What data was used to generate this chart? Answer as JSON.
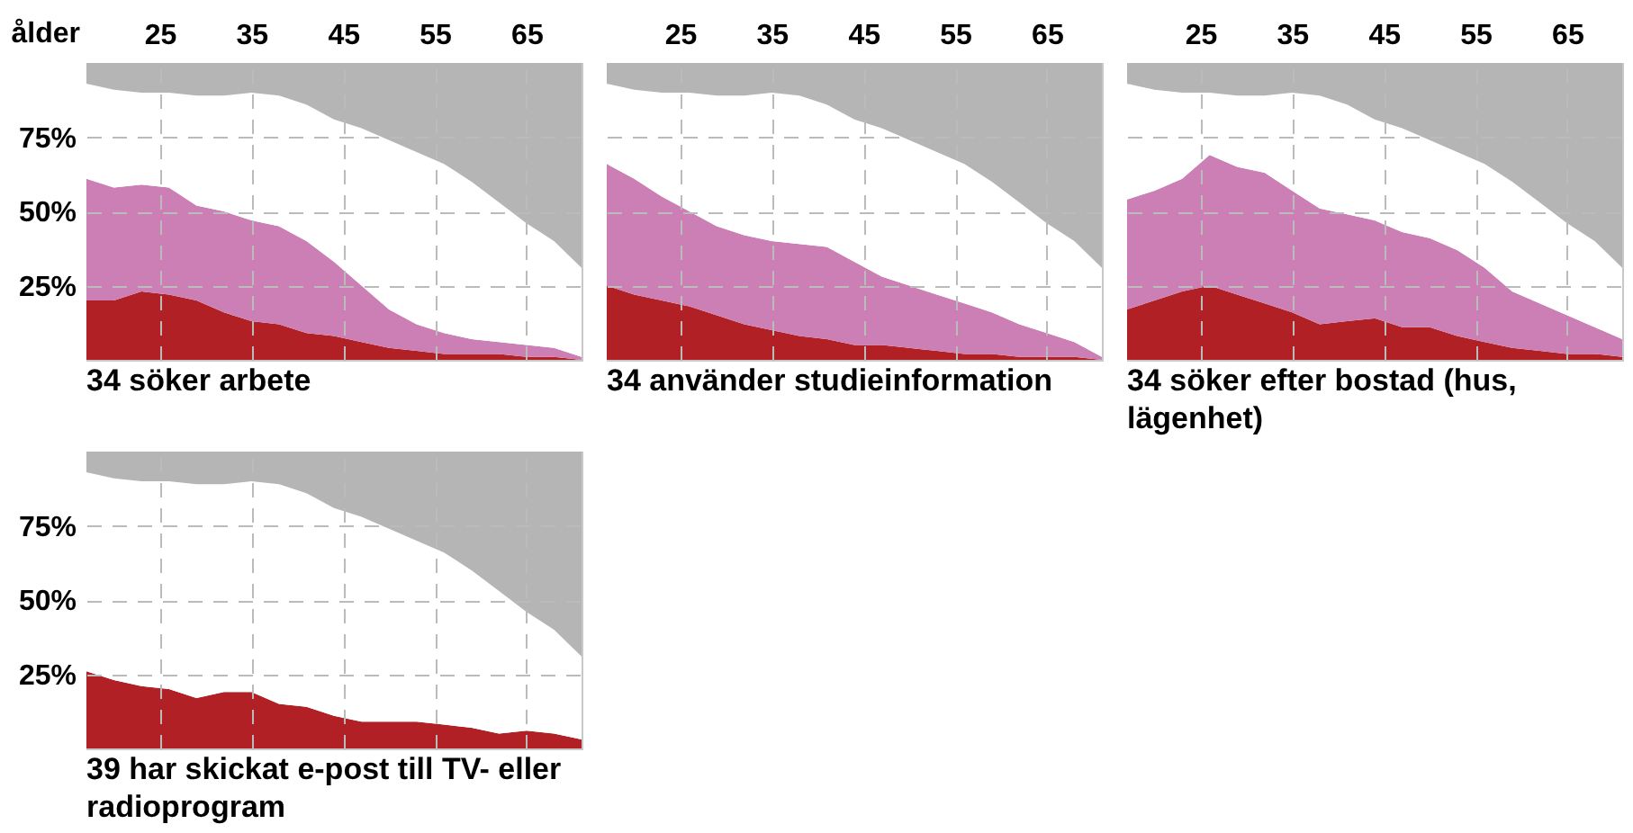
{
  "chart_data": [
    {
      "type": "area",
      "title": "34 söker arbete",
      "xlabel": "ålder",
      "stacked": true,
      "grid": true,
      "xlim": [
        17,
        71
      ],
      "xticks": [
        25,
        35,
        45,
        55,
        65
      ],
      "ylim": [
        0,
        100
      ],
      "yticks": [
        {
          "value": 25,
          "label": "25%"
        },
        {
          "value": 50,
          "label": "50%"
        },
        {
          "value": 75,
          "label": "75%"
        }
      ],
      "x": [
        17,
        20,
        23,
        26,
        29,
        32,
        35,
        38,
        41,
        44,
        47,
        50,
        53,
        56,
        59,
        62,
        65,
        68,
        71
      ],
      "series": [
        {
          "color": "#b02024",
          "values": [
            20,
            20,
            23,
            22,
            20,
            16,
            13,
            12,
            9,
            8,
            6,
            4,
            3,
            2,
            2,
            2,
            1,
            1,
            0
          ]
        },
        {
          "color": "#cc7fb5",
          "values": [
            41,
            38,
            36,
            36,
            32,
            34,
            34,
            33,
            31,
            25,
            19,
            13,
            9,
            7,
            5,
            4,
            4,
            3,
            1
          ]
        },
        {
          "color": "#ffffff",
          "values": [
            32,
            33,
            31,
            32,
            37,
            39,
            43,
            44,
            46,
            48,
            53,
            57,
            58,
            57,
            53,
            47,
            41,
            36,
            30
          ]
        },
        {
          "color": "#b5b5b5",
          "values": [
            7,
            9,
            10,
            10,
            11,
            11,
            10,
            11,
            14,
            19,
            22,
            26,
            30,
            34,
            40,
            47,
            54,
            60,
            69
          ]
        }
      ]
    },
    {
      "type": "area",
      "title": "34 använder studieinformation",
      "stacked": true,
      "grid": true,
      "tick_labels": "x",
      "xlim": [
        17,
        71
      ],
      "xticks": [
        25,
        35,
        45,
        55,
        65
      ],
      "ylim": [
        0,
        100
      ],
      "yticks": [
        25,
        50,
        75
      ],
      "x": [
        17,
        20,
        23,
        26,
        29,
        32,
        35,
        38,
        41,
        44,
        47,
        50,
        53,
        56,
        59,
        62,
        65,
        68,
        71
      ],
      "series": [
        {
          "color": "#b02024",
          "values": [
            25,
            22,
            20,
            18,
            15,
            12,
            10,
            8,
            7,
            5,
            5,
            4,
            3,
            2,
            2,
            1,
            1,
            1,
            0
          ]
        },
        {
          "color": "#cc7fb5",
          "values": [
            41,
            39,
            35,
            32,
            30,
            30,
            30,
            31,
            31,
            28,
            23,
            21,
            19,
            17,
            14,
            11,
            8,
            5,
            1
          ]
        },
        {
          "color": "#ffffff",
          "values": [
            27,
            30,
            35,
            40,
            44,
            47,
            50,
            50,
            48,
            48,
            50,
            49,
            48,
            47,
            44,
            41,
            37,
            34,
            30
          ]
        },
        {
          "color": "#b5b5b5",
          "values": [
            7,
            9,
            10,
            10,
            11,
            11,
            10,
            11,
            14,
            19,
            22,
            26,
            30,
            34,
            40,
            47,
            54,
            60,
            69
          ]
        }
      ]
    },
    {
      "type": "area",
      "title": "34 söker efter bostad (hus, lägenhet)",
      "stacked": true,
      "grid": true,
      "tick_labels": "x",
      "xlim": [
        17,
        71
      ],
      "xticks": [
        25,
        35,
        45,
        55,
        65
      ],
      "ylim": [
        0,
        100
      ],
      "yticks": [
        25,
        50,
        75
      ],
      "x": [
        17,
        20,
        23,
        26,
        29,
        32,
        35,
        38,
        41,
        44,
        47,
        50,
        53,
        56,
        59,
        62,
        65,
        68,
        71
      ],
      "series": [
        {
          "color": "#b02024",
          "values": [
            17,
            20,
            23,
            25,
            22,
            19,
            16,
            12,
            13,
            14,
            11,
            11,
            8,
            6,
            4,
            3,
            2,
            2,
            1
          ]
        },
        {
          "color": "#cc7fb5",
          "values": [
            37,
            37,
            38,
            44,
            43,
            44,
            41,
            39,
            36,
            33,
            32,
            30,
            29,
            25,
            19,
            16,
            13,
            9,
            6
          ]
        },
        {
          "color": "#ffffff",
          "values": [
            39,
            34,
            29,
            21,
            24,
            26,
            33,
            38,
            37,
            34,
            35,
            33,
            33,
            35,
            37,
            34,
            31,
            29,
            24
          ]
        },
        {
          "color": "#b5b5b5",
          "values": [
            7,
            9,
            10,
            10,
            11,
            11,
            10,
            11,
            14,
            19,
            22,
            26,
            30,
            34,
            40,
            47,
            54,
            60,
            69
          ]
        }
      ]
    },
    {
      "type": "area",
      "title": "39 har skickat e-post till TV- eller radioprogram",
      "stacked": true,
      "grid": true,
      "tick_labels": "y",
      "xlim": [
        17,
        71
      ],
      "xticks": [
        25,
        35,
        45,
        55,
        65
      ],
      "ylim": [
        0,
        100
      ],
      "yticks": [
        {
          "value": 25,
          "label": "25%"
        },
        {
          "value": 50,
          "label": "50%"
        },
        {
          "value": 75,
          "label": "75%"
        }
      ],
      "x": [
        17,
        20,
        23,
        26,
        29,
        32,
        35,
        38,
        41,
        44,
        47,
        50,
        53,
        56,
        59,
        62,
        65,
        68,
        71
      ],
      "series": [
        {
          "color": "#b02024",
          "values": [
            26,
            23,
            21,
            20,
            17,
            19,
            19,
            15,
            14,
            11,
            9,
            9,
            9,
            8,
            7,
            5,
            6,
            5,
            3
          ]
        },
        {
          "color": "#ffffff",
          "values": [
            67,
            68,
            69,
            70,
            72,
            70,
            71,
            74,
            72,
            70,
            69,
            65,
            61,
            58,
            53,
            48,
            40,
            35,
            28
          ]
        },
        {
          "color": "#b5b5b5",
          "values": [
            7,
            9,
            10,
            10,
            11,
            11,
            10,
            11,
            14,
            19,
            22,
            26,
            30,
            34,
            40,
            47,
            54,
            60,
            69
          ]
        }
      ]
    }
  ]
}
